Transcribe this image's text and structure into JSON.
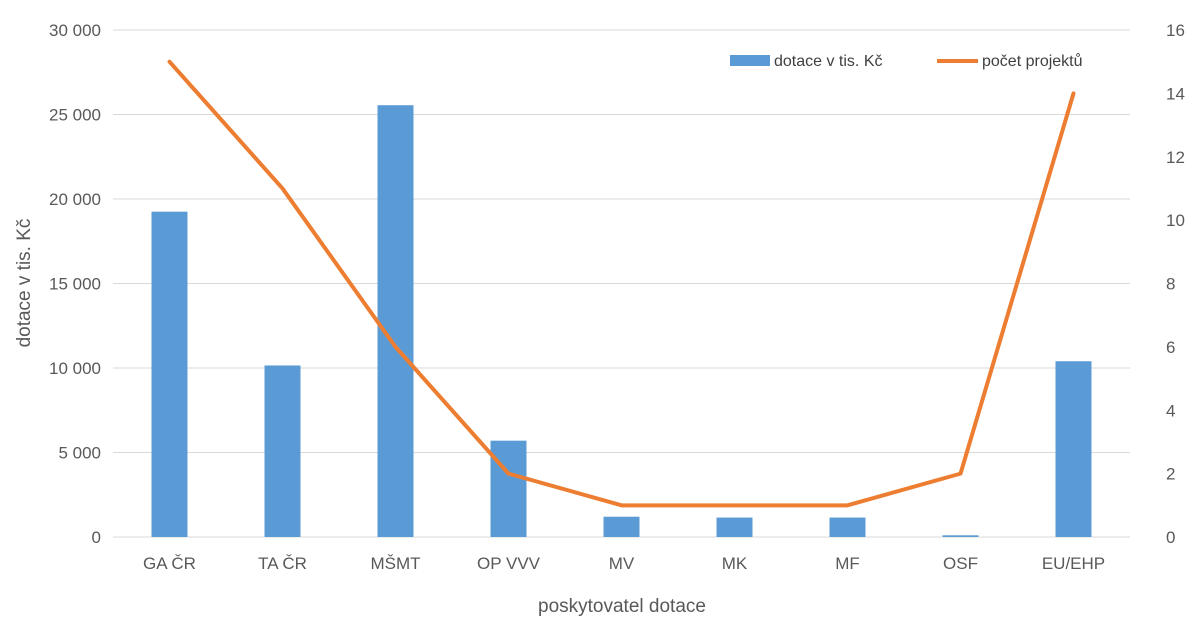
{
  "chart_data": {
    "type": "bar",
    "categories": [
      "GA ČR",
      "TA ČR",
      "MŠMT",
      "OP VVV",
      "MV",
      "MK",
      "MF",
      "OSF",
      "EU/EHP"
    ],
    "series": [
      {
        "name": "dotace v tis. Kč",
        "type": "bar",
        "axis": "left",
        "color": "#5b9bd5",
        "values": [
          19250,
          10150,
          25550,
          5700,
          1200,
          1150,
          1150,
          100,
          10400
        ]
      },
      {
        "name": "počet projektů",
        "type": "line",
        "axis": "right",
        "color": "#ed7d31",
        "values": [
          15,
          11,
          6,
          2,
          1,
          1,
          1,
          2,
          14
        ]
      }
    ],
    "title": "",
    "xlabel": "poskytovatel dotace",
    "ylabel": "dotace v tis. Kč",
    "ylabel_right": "",
    "ylim": [
      0,
      30000
    ],
    "ylim_right": [
      0,
      16
    ],
    "yticks": [
      "0",
      "5 000",
      "10 000",
      "15 000",
      "20 000",
      "25 000",
      "30 000"
    ],
    "yticks_right": [
      "0",
      "2",
      "4",
      "6",
      "8",
      "10",
      "12",
      "14",
      "16"
    ],
    "grid": true,
    "legend_position": "top-right",
    "colors": {
      "grid": "#d9d9d9",
      "text": "#595959"
    }
  }
}
